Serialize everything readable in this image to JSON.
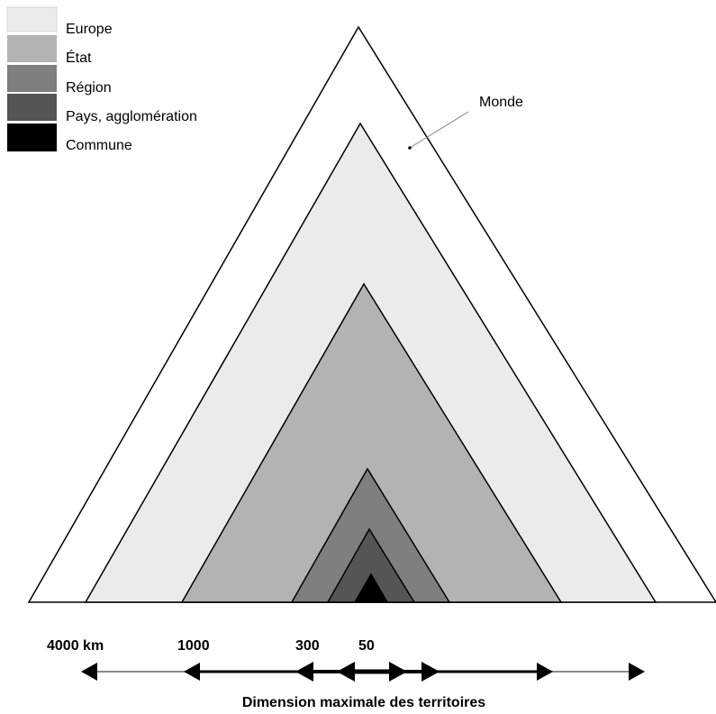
{
  "legend": {
    "items": [
      {
        "label": "Europe",
        "color": "#ebebeb"
      },
      {
        "label": "État",
        "color": "#b3b3b3"
      },
      {
        "label": "Région",
        "color": "#7f7f7f"
      },
      {
        "label": "Pays, agglomération",
        "color": "#555555"
      },
      {
        "label": "Commune",
        "color": "#000000"
      }
    ]
  },
  "outer_label": "Monde",
  "scale": {
    "labels": [
      "4000 km",
      "1000",
      "300",
      "50"
    ],
    "title": "Dimension maximale des territoires"
  },
  "colors": {
    "monde": "#ffffff",
    "europe": "#ebebeb",
    "etat": "#b3b3b3",
    "region": "#7f7f7f",
    "pays": "#555555",
    "commune": "#000000",
    "stroke": "#000000"
  }
}
